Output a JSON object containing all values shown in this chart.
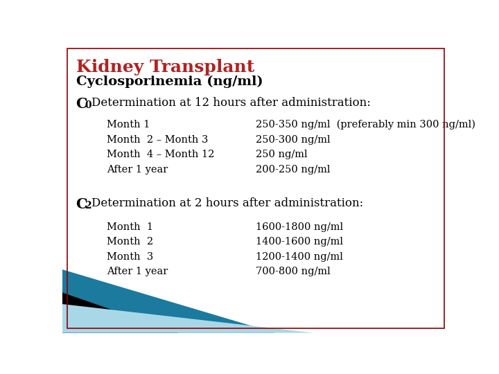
{
  "title": "Kidney Transplant",
  "subtitle": "Cyclosporinemia (ng/ml)",
  "title_color": "#B22222",
  "subtitle_color": "#000000",
  "border_color": "#8B0000",
  "bg_color": "#FFFFFF",
  "c0_label": "C",
  "c0_sub": "0",
  "c0_header": "Determination at 12 hours after administration:",
  "c0_rows": [
    [
      "Month 1",
      "250-350 ng/ml  (preferably min 300 ng/ml)"
    ],
    [
      "Month  2 – Month 3",
      "250-300 ng/ml"
    ],
    [
      "Month  4 – Month 12",
      "250 ng/ml"
    ],
    [
      "After 1 year",
      "200-250 ng/ml"
    ]
  ],
  "c2_label": "C",
  "c2_sub": "2",
  "c2_header": "Determination at 2 hours after administration:",
  "c2_rows": [
    [
      "Month  1",
      "1600-1800 ng/ml"
    ],
    [
      "Month  2",
      "1400-1600 ng/ml"
    ],
    [
      "Month  3",
      "1200-1400 ng/ml"
    ],
    [
      "After 1 year",
      "700-800 ng/ml"
    ]
  ],
  "tri_colors": [
    "#1B7A9E",
    "#000000",
    "#A8D8E8"
  ],
  "font_family": "serif"
}
